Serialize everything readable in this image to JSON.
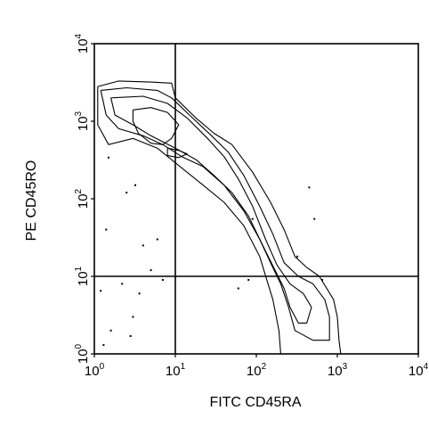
{
  "chart_data": {
    "type": "contour",
    "title": "",
    "xlabel": "FITC CD45RA",
    "ylabel": "PE CD45RO",
    "x_scale": "log",
    "y_scale": "log",
    "xlim": [
      1,
      10000
    ],
    "ylim": [
      1,
      10000
    ],
    "x_ticks": [
      {
        "value": 1,
        "base": "10",
        "exp": "0"
      },
      {
        "value": 10,
        "base": "10",
        "exp": "1"
      },
      {
        "value": 100,
        "base": "10",
        "exp": "2"
      },
      {
        "value": 1000,
        "base": "10",
        "exp": "3"
      },
      {
        "value": 10000,
        "base": "10",
        "exp": "4"
      }
    ],
    "y_ticks": [
      {
        "value": 1,
        "base": "10",
        "exp": "0"
      },
      {
        "value": 10,
        "base": "10",
        "exp": "1"
      },
      {
        "value": 100,
        "base": "10",
        "exp": "2"
      },
      {
        "value": 1000,
        "base": "10",
        "exp": "3"
      },
      {
        "value": 10000,
        "base": "10",
        "exp": "4"
      }
    ],
    "grid": false,
    "quadrant_gates": {
      "x": 10,
      "y": 10
    },
    "contours": [
      {
        "name": "",
        "points": [
          [
            1.1,
            2800
          ],
          [
            2,
            3300
          ],
          [
            5,
            3200
          ],
          [
            9,
            3100
          ],
          [
            10,
            2000
          ],
          [
            18,
            1100
          ],
          [
            30,
            700
          ],
          [
            50,
            500
          ],
          [
            90,
            220
          ],
          [
            150,
            90
          ],
          [
            220,
            40
          ],
          [
            300,
            18
          ],
          [
            420,
            13
          ],
          [
            600,
            10
          ],
          [
            900,
            5
          ],
          [
            1000,
            3
          ],
          [
            1050,
            1.5
          ],
          [
            1100,
            1
          ],
          [
            200,
            1
          ],
          [
            190,
            2
          ],
          [
            160,
            5
          ],
          [
            110,
            18
          ],
          [
            70,
            45
          ],
          [
            40,
            90
          ],
          [
            22,
            150
          ],
          [
            12,
            250
          ],
          [
            6,
            450
          ],
          [
            3,
            600
          ],
          [
            1.5,
            500
          ],
          [
            1.1,
            900
          ],
          [
            1.1,
            2800
          ]
        ]
      },
      {
        "name": "",
        "points": [
          [
            1.2,
            2500
          ],
          [
            2.5,
            2700
          ],
          [
            6,
            2500
          ],
          [
            9,
            2000
          ],
          [
            15,
            1200
          ],
          [
            28,
            650
          ],
          [
            45,
            400
          ],
          [
            70,
            200
          ],
          [
            110,
            80
          ],
          [
            160,
            35
          ],
          [
            220,
            15
          ],
          [
            330,
            10
          ],
          [
            500,
            8
          ],
          [
            700,
            5
          ],
          [
            800,
            3
          ],
          [
            800,
            1.5
          ],
          [
            500,
            1.5
          ],
          [
            300,
            2
          ],
          [
            250,
            4
          ],
          [
            200,
            8
          ],
          [
            150,
            15
          ],
          [
            110,
            30
          ],
          [
            70,
            70
          ],
          [
            40,
            150
          ],
          [
            22,
            260
          ],
          [
            12,
            350
          ],
          [
            7,
            500
          ],
          [
            4,
            650
          ],
          [
            2,
            800
          ],
          [
            1.4,
            1200
          ],
          [
            1.2,
            2500
          ]
        ]
      },
      {
        "name": "",
        "points": [
          [
            1.6,
            2000
          ],
          [
            4,
            2100
          ],
          [
            8,
            1700
          ],
          [
            14,
            1100
          ],
          [
            25,
            600
          ],
          [
            40,
            350
          ],
          [
            60,
            180
          ],
          [
            90,
            80
          ],
          [
            130,
            30
          ],
          [
            180,
            14
          ],
          [
            260,
            8
          ],
          [
            380,
            6
          ],
          [
            480,
            4
          ],
          [
            420,
            2.5
          ],
          [
            330,
            2.5
          ],
          [
            260,
            4
          ],
          [
            220,
            7
          ],
          [
            170,
            12
          ],
          [
            120,
            25
          ],
          [
            80,
            60
          ],
          [
            50,
            120
          ],
          [
            30,
            200
          ],
          [
            18,
            320
          ],
          [
            10,
            450
          ],
          [
            5,
            650
          ],
          [
            3,
            900
          ],
          [
            1.8,
            1200
          ],
          [
            1.6,
            2000
          ]
        ]
      },
      {
        "name": "",
        "points": [
          [
            3,
            1400
          ],
          [
            5,
            1500
          ],
          [
            8,
            1300
          ],
          [
            11,
            900
          ],
          [
            9,
            600
          ],
          [
            7,
            500
          ],
          [
            5,
            520
          ],
          [
            3.5,
            700
          ],
          [
            3,
            1000
          ],
          [
            3,
            1400
          ]
        ]
      },
      {
        "name": "",
        "points": [
          [
            8,
            450
          ],
          [
            11,
            420
          ],
          [
            14,
            380
          ],
          [
            11,
            340
          ],
          [
            8,
            360
          ],
          [
            8,
            450
          ]
        ]
      }
    ],
    "scatter": [
      [
        1.5,
        340
      ],
      [
        2.5,
        120
      ],
      [
        3.2,
        150
      ],
      [
        1.4,
        40
      ],
      [
        2.2,
        8
      ],
      [
        1.6,
        2
      ],
      [
        2.8,
        1.7
      ],
      [
        4,
        25
      ],
      [
        5,
        12
      ],
      [
        6,
        30
      ],
      [
        3,
        3
      ],
      [
        1.3,
        1.3
      ],
      [
        60,
        7
      ],
      [
        80,
        9
      ],
      [
        320,
        18
      ],
      [
        450,
        140
      ],
      [
        520,
        55
      ],
      [
        650,
        9
      ],
      [
        90,
        55
      ],
      [
        1.2,
        6.5
      ],
      [
        3.6,
        6
      ],
      [
        7,
        9
      ]
    ]
  }
}
